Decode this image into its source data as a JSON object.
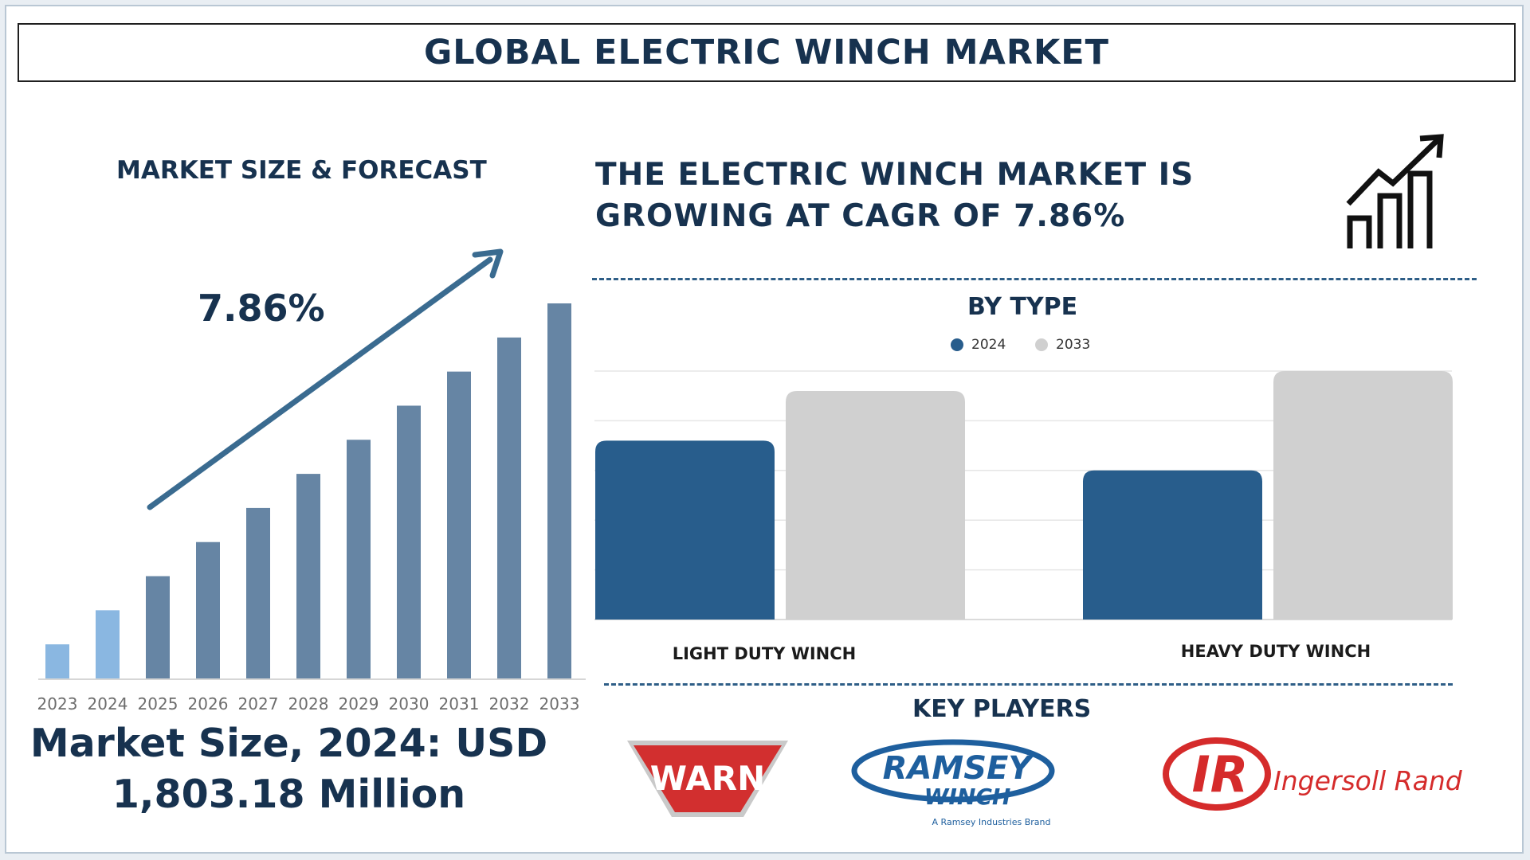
{
  "header": {
    "title": "GLOBAL ELECTRIC WINCH MARKET"
  },
  "forecast": {
    "heading": "MARKET SIZE & FORECAST",
    "cagr_label": "7.86%",
    "market_size_line1": "Market Size, 2024: USD",
    "market_size_line2": "1,803.18 Million"
  },
  "growth": {
    "line1": "THE ELECTRIC WINCH MARKET IS",
    "line2": "GROWING AT CAGR OF 7.86%"
  },
  "type_section": {
    "heading": "BY TYPE"
  },
  "players": {
    "heading": "KEY PLAYERS",
    "items": [
      {
        "name": "WARN",
        "icon": "warn-logo"
      },
      {
        "name": "RAMSEY",
        "sub": "WINCH",
        "tagline": "A Ramsey Industries Brand",
        "icon": "ramsey-winch-logo"
      },
      {
        "name": "Ingersoll Rand",
        "mark": "IR",
        "icon": "ingersoll-rand-logo"
      }
    ]
  },
  "colors": {
    "navy": "#17324f",
    "bar_first": "#8ab7e1",
    "bar_main": "#6685a4",
    "bar_2024": "#285d8c",
    "bar_2033": "#d0d0d0",
    "arrow": "#3a6b90"
  },
  "chart_data": [
    {
      "type": "bar",
      "categories": [
        "2023",
        "2024",
        "2025",
        "2026",
        "2027",
        "2028",
        "2029",
        "2030",
        "2031",
        "2032",
        "2033"
      ],
      "values": [
        1.0,
        2.0,
        3.0,
        4.0,
        5.0,
        6.0,
        7.0,
        8.0,
        9.0,
        10.0,
        11.0
      ],
      "title": "MARKET SIZE & FORECAST",
      "annotation": "7.86%",
      "ylim": [
        0,
        11
      ],
      "grid": false
    },
    {
      "type": "bar",
      "title": "BY TYPE",
      "categories": [
        "LIGHT DUTY WINCH",
        "HEAVY DUTY WINCH"
      ],
      "series": [
        {
          "name": "2024",
          "values": [
            3.6,
            3.0
          ]
        },
        {
          "name": "2033",
          "values": [
            4.6,
            5.0
          ]
        }
      ],
      "ylim": [
        0,
        5
      ],
      "grid": true,
      "legend": "top-center"
    }
  ]
}
